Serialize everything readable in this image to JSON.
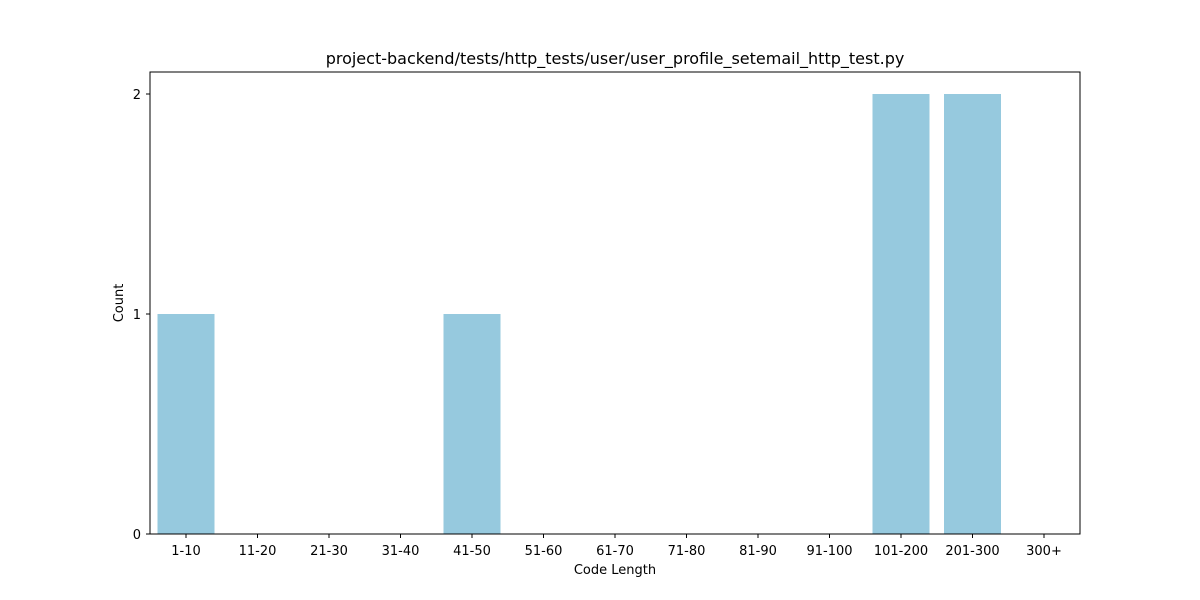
{
  "chart_data": {
    "type": "bar",
    "title": "project-backend/tests/http_tests/user/user_profile_setemail_http_test.py",
    "xlabel": "Code Length",
    "ylabel": "Count",
    "categories": [
      "1-10",
      "11-20",
      "21-30",
      "31-40",
      "41-50",
      "51-60",
      "61-70",
      "71-80",
      "81-90",
      "91-100",
      "101-200",
      "201-300",
      "300+"
    ],
    "values": [
      1,
      0,
      0,
      0,
      1,
      0,
      0,
      0,
      0,
      0,
      2,
      2,
      0
    ],
    "ylim": [
      0,
      2.1
    ],
    "yticks": [
      0,
      1,
      2
    ],
    "bar_color": "#96c9de",
    "grid": false,
    "legend": "none"
  }
}
